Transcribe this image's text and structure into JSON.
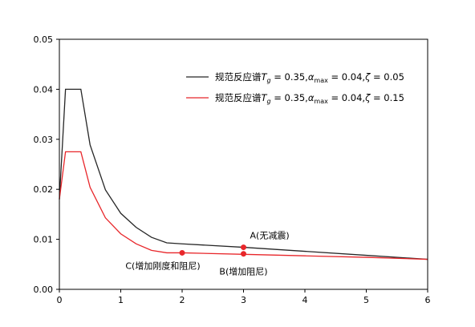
{
  "chart_data": {
    "type": "line",
    "title": "",
    "xlabel": "",
    "ylabel": "",
    "xlim": [
      0,
      6
    ],
    "ylim": [
      0,
      0.05
    ],
    "xticks": [
      "0",
      "1",
      "2",
      "3",
      "4",
      "5",
      "6"
    ],
    "yticks": [
      "0.00",
      "0.01",
      "0.02",
      "0.03",
      "0.04",
      "0.05"
    ],
    "grid": false,
    "legend_position": "upper-right",
    "series": [
      {
        "name": "规范反应谱T_g = 0.35,α_max = 0.04,ζ = 0.05",
        "legend_parts": [
          "规范反应谱",
          "T",
          "g",
          " = 0.35,",
          "α",
          "max",
          " = 0.04,",
          "ζ",
          " = 0.05"
        ],
        "color": "#262626",
        "Tg": 0.35,
        "alpha_max": 0.04,
        "zeta": 0.05,
        "x": [
          0,
          0.1,
          0.35,
          0.5,
          0.75,
          1.0,
          1.25,
          1.5,
          1.75,
          2.0,
          3.0,
          4.0,
          5.0,
          6.0
        ],
        "y": [
          0.018,
          0.04,
          0.04,
          0.0289,
          0.0199,
          0.0152,
          0.0124,
          0.0104,
          0.0093,
          0.0091,
          0.0084,
          0.0076,
          0.0068,
          0.006
        ]
      },
      {
        "name": "规范反应谱T_g = 0.35,α_max = 0.04,ζ = 0.15",
        "legend_parts": [
          "规范反应谱",
          "T",
          "g",
          " = 0.35,",
          "α",
          "max",
          " = 0.04,",
          "ζ",
          " = 0.15"
        ],
        "color": "#e8262a",
        "Tg": 0.35,
        "alpha_max": 0.04,
        "zeta": 0.15,
        "x": [
          0,
          0.1,
          0.35,
          0.5,
          0.75,
          1.0,
          1.25,
          1.5,
          1.75,
          2.0,
          3.0,
          4.0,
          5.0,
          6.0
        ],
        "y": [
          0.018,
          0.0275,
          0.0275,
          0.0204,
          0.0143,
          0.0111,
          0.0091,
          0.0078,
          0.0073,
          0.0073,
          0.007,
          0.0067,
          0.0064,
          0.006
        ]
      }
    ],
    "points": [
      {
        "label": "A(无减震)",
        "x": 3.0,
        "y": 0.0084,
        "color": "#e8262a"
      },
      {
        "label": "B(增加阻尼)",
        "x": 3.0,
        "y": 0.0071,
        "color": "#e8262a"
      },
      {
        "label": "C(增加刚度和阻尼)",
        "x": 2.0,
        "y": 0.0073,
        "color": "#e8262a"
      }
    ]
  }
}
